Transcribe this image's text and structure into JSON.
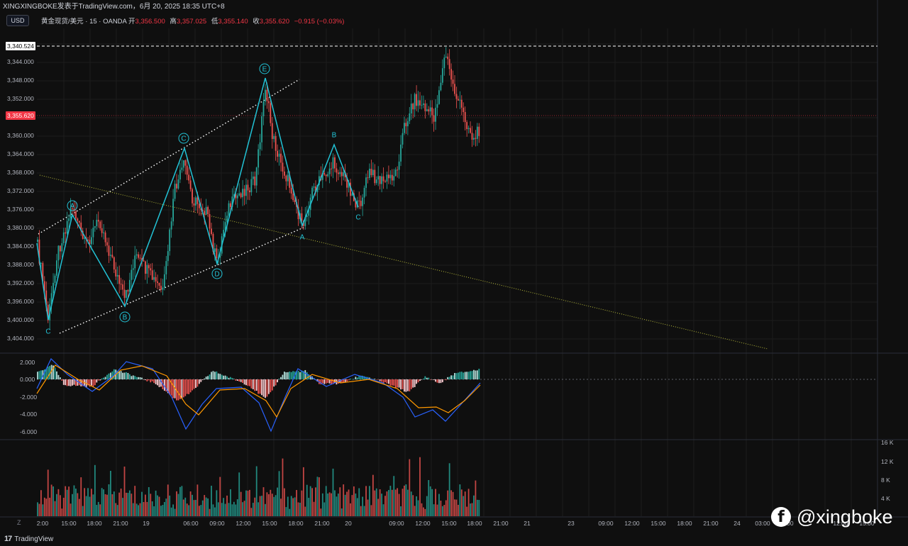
{
  "header": {
    "publisher": "XINGXINGBOKE发表于TradingView.com，6月 20, 2025 18:35 UTC+8",
    "currency_button": "USD",
    "symbol": "黄金现货/美元 · 15 · OANDA",
    "open_label": "开",
    "open": "3,356.500",
    "high_label": "高",
    "high": "3,357.025",
    "low_label": "低",
    "low": "3,355.140",
    "close_label": "收",
    "close": "3,355.620",
    "change": "−0.915 (−0.03%)"
  },
  "colors": {
    "up": "#26a69a",
    "down": "#ef5350",
    "wave": "#22c3d6",
    "trend_yellow": "#b5b83a",
    "macd_line": "#2962ff",
    "signal_line": "#ff9800",
    "price_tag": "#f23645"
  },
  "chart_data": [
    {
      "type": "line",
      "title": "",
      "price_axis_ticks": [
        "3,340.524",
        "3,344.000",
        "3,348.000",
        "3,352.000",
        "3,355.620",
        "3,360.000",
        "3,364.000",
        "3,368.000",
        "3,372.000",
        "3,376.000",
        "3,380.000",
        "3,384.000",
        "3,388.000",
        "3,392.000",
        "3,396.000",
        "3,400.000",
        "3,404.000"
      ],
      "current_price": "3,355.620",
      "high_line_price": "3,340.524",
      "time_axis_ticks": [
        "2:00",
        "15:00",
        "18:00",
        "21:00",
        "19",
        "06:00",
        "09:00",
        "12:00",
        "15:00",
        "18:00",
        "21:00",
        "20",
        "09:00",
        "12:00",
        "15:00",
        "18:00",
        "21:00",
        "21",
        "23",
        "09:00",
        "12:00",
        "15:00",
        "18:00",
        "21:00",
        "24",
        "03:00",
        "06:00",
        "12:00",
        "15:00"
      ],
      "wave_labels": [
        {
          "label": "C",
          "circled": false
        },
        {
          "label": "A",
          "circled": true
        },
        {
          "label": "B",
          "circled": true
        },
        {
          "label": "C",
          "circled": true
        },
        {
          "label": "D",
          "circled": true
        },
        {
          "label": "E",
          "circled": true
        },
        {
          "label": "A",
          "circled": false
        },
        {
          "label": "B",
          "circled": false
        },
        {
          "label": "C",
          "circled": false
        }
      ]
    },
    {
      "type": "bar",
      "title": "",
      "indicator": "MACD",
      "axis_ticks": [
        "2.000",
        "0.000",
        "-2.000",
        "-4.000",
        "-6.000"
      ]
    },
    {
      "type": "bar",
      "title": "",
      "indicator": "Volume",
      "axis_ticks": [
        "16 K",
        "12 K",
        "8 K",
        "4 K"
      ]
    }
  ],
  "footer": {
    "brand": "TradingView",
    "zoom_button": "Z",
    "watermark_icon": "facebook-icon",
    "watermark_text": "@xingboke"
  }
}
